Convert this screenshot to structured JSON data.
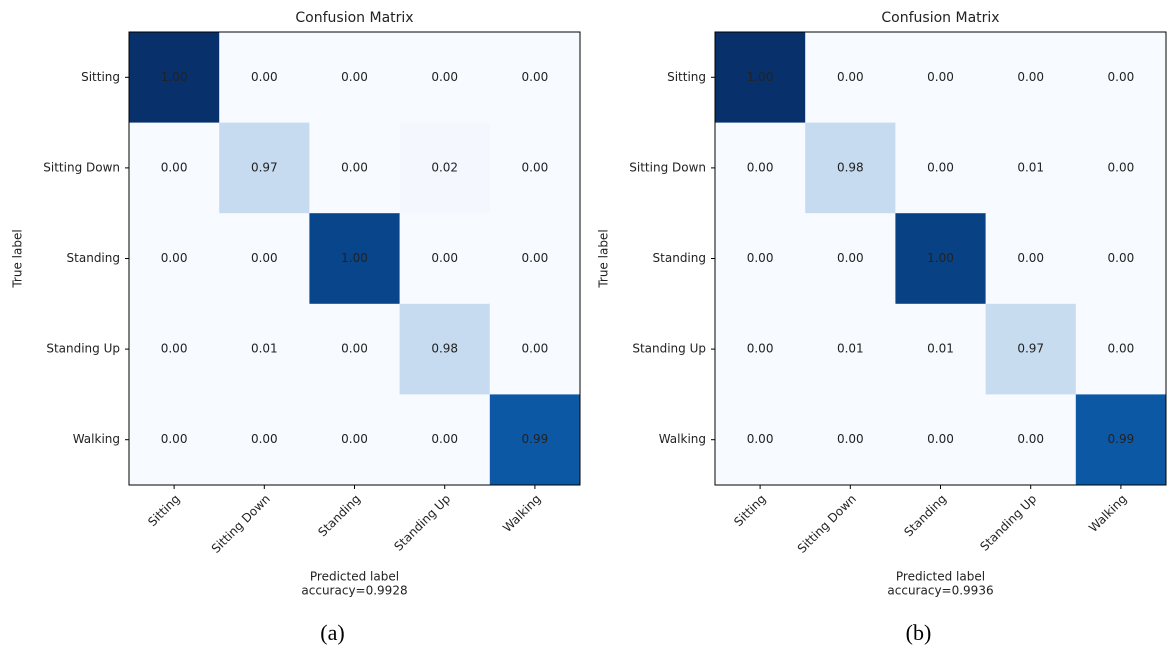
{
  "chart_data": [
    {
      "type": "heatmap",
      "title": "Confusion Matrix",
      "xlabel": "Predicted label",
      "note": "accuracy=0.9928",
      "ylabel": "True label",
      "caption": "(a)",
      "x_categories": [
        "Sitting",
        "Sitting Down",
        "Standing",
        "Standing Up",
        "Walking"
      ],
      "y_categories": [
        "Sitting",
        "Sitting Down",
        "Standing",
        "Standing Up",
        "Walking"
      ],
      "matrix": [
        [
          1,
          0,
          0,
          0,
          0
        ],
        [
          0,
          0.97,
          0,
          0.02,
          0
        ],
        [
          0,
          0,
          1,
          0,
          0
        ],
        [
          0,
          0.01,
          0,
          0.98,
          0
        ],
        [
          0,
          0,
          0,
          0,
          0.99
        ]
      ],
      "value_labels": [
        [
          "1.00",
          "0.00",
          "0.00",
          "0.00",
          "0.00"
        ],
        [
          "0.00",
          "0.97",
          "0.00",
          "0.02",
          "0.00"
        ],
        [
          "0.00",
          "0.00",
          "1.00",
          "0.00",
          "0.00"
        ],
        [
          "0.00",
          "0.01",
          "0.00",
          "0.98",
          "0.00"
        ],
        [
          "0.00",
          "0.00",
          "0.00",
          "0.00",
          "0.99"
        ]
      ],
      "cell_colors": [
        [
          "#08306b",
          "#f7fbff",
          "#f7fbff",
          "#f7fbff",
          "#f7fbff"
        ],
        [
          "#f7fbff",
          "#c6dbef",
          "#f7fbff",
          "#f4f8fe",
          "#f7fbff"
        ],
        [
          "#f7fbff",
          "#f7fbff",
          "#08458a",
          "#f7fbff",
          "#f7fbff"
        ],
        [
          "#f7fbff",
          "#f7fbff",
          "#f7fbff",
          "#c6dbef",
          "#f7fbff"
        ],
        [
          "#f7fbff",
          "#f7fbff",
          "#f7fbff",
          "#f7fbff",
          "#0d58a5"
        ]
      ]
    },
    {
      "type": "heatmap",
      "title": "Confusion Matrix",
      "xlabel": "Predicted label",
      "note": "accuracy=0.9936",
      "ylabel": "True label",
      "caption": "(b)",
      "x_categories": [
        "Sitting",
        "Sitting Down",
        "Standing",
        "Standing Up",
        "Walking"
      ],
      "y_categories": [
        "Sitting",
        "Sitting Down",
        "Standing",
        "Standing Up",
        "Walking"
      ],
      "matrix": [
        [
          1,
          0,
          0,
          0,
          0
        ],
        [
          0,
          0.98,
          0,
          0.01,
          0
        ],
        [
          0,
          0,
          1,
          0,
          0
        ],
        [
          0,
          0.01,
          0.01,
          0.97,
          0
        ],
        [
          0,
          0,
          0,
          0,
          0.99
        ]
      ],
      "value_labels": [
        [
          "1.00",
          "0.00",
          "0.00",
          "0.00",
          "0.00"
        ],
        [
          "0.00",
          "0.98",
          "0.00",
          "0.01",
          "0.00"
        ],
        [
          "0.00",
          "0.00",
          "1.00",
          "0.00",
          "0.00"
        ],
        [
          "0.00",
          "0.01",
          "0.01",
          "0.97",
          "0.00"
        ],
        [
          "0.00",
          "0.00",
          "0.00",
          "0.00",
          "0.99"
        ]
      ],
      "cell_colors": [
        [
          "#08306b",
          "#f7fbff",
          "#f7fbff",
          "#f7fbff",
          "#f7fbff"
        ],
        [
          "#f7fbff",
          "#c6dbef",
          "#f7fbff",
          "#f7fbff",
          "#f7fbff"
        ],
        [
          "#f7fbff",
          "#f7fbff",
          "#084285",
          "#f7fbff",
          "#f7fbff"
        ],
        [
          "#f7fbff",
          "#f7fbff",
          "#f7fbff",
          "#c8dcf0",
          "#f7fbff"
        ],
        [
          "#f7fbff",
          "#f7fbff",
          "#f7fbff",
          "#f7fbff",
          "#0d58a5"
        ]
      ]
    }
  ]
}
